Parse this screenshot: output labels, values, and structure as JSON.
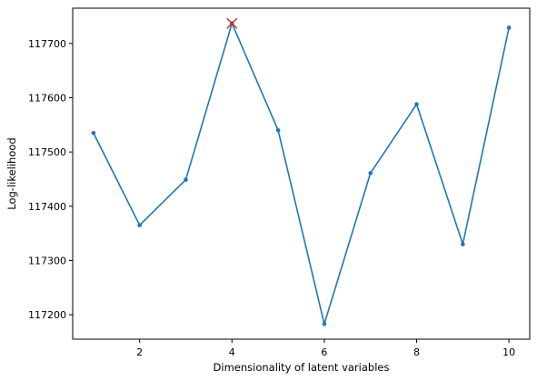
{
  "chart_data": {
    "type": "line",
    "title": "",
    "xlabel": "Dimensionality of latent variables",
    "ylabel": "Log-likelihood",
    "x": [
      1,
      2,
      3,
      4,
      5,
      6,
      7,
      8,
      9,
      10
    ],
    "series": [
      {
        "values": [
          117535,
          117365,
          117449,
          117737,
          117540,
          117183,
          117461,
          117588,
          117330,
          117729
        ],
        "color": "#1f77b4",
        "marker": "dot"
      }
    ],
    "highlight": {
      "x": 4,
      "y": 117737,
      "marker": "x",
      "color": "#d62728"
    },
    "xlim": [
      0.55,
      10.45
    ],
    "ylim": [
      117155,
      117765
    ],
    "xticks": [
      2,
      4,
      6,
      8,
      10
    ],
    "yticks": [
      117200,
      117300,
      117400,
      117500,
      117600,
      117700
    ],
    "grid": false,
    "legend": false
  }
}
